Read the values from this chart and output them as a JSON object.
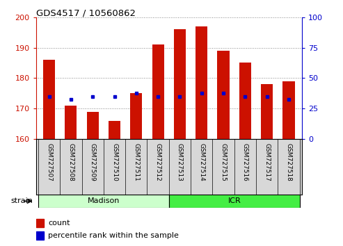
{
  "title": "GDS4517 / 10560862",
  "samples": [
    "GSM727507",
    "GSM727508",
    "GSM727509",
    "GSM727510",
    "GSM727511",
    "GSM727512",
    "GSM727513",
    "GSM727514",
    "GSM727515",
    "GSM727516",
    "GSM727517",
    "GSM727518"
  ],
  "count_values": [
    186,
    171,
    169,
    166,
    175,
    191,
    196,
    197,
    189,
    185,
    178,
    179
  ],
  "percentile_values": [
    174,
    173,
    174,
    174,
    175,
    174,
    174,
    175,
    175,
    174,
    174,
    173
  ],
  "ylim_left": [
    160,
    200
  ],
  "ylim_right": [
    0,
    100
  ],
  "yticks_left": [
    160,
    170,
    180,
    190,
    200
  ],
  "yticks_right": [
    0,
    25,
    50,
    75,
    100
  ],
  "bar_color": "#cc1100",
  "dot_color": "#0000cc",
  "bar_width": 0.55,
  "groups": [
    {
      "label": "Madison",
      "start": 0,
      "end": 5,
      "color": "#ccffcc"
    },
    {
      "label": "ICR",
      "start": 6,
      "end": 11,
      "color": "#44ee44"
    }
  ],
  "strain_label": "strain",
  "legend_count": "count",
  "legend_percentile": "percentile rank within the sample",
  "left_axis_color": "#cc1100",
  "right_axis_color": "#0000cc",
  "cell_bg_color": "#d8d8d8",
  "cell_border_color": "#000000"
}
